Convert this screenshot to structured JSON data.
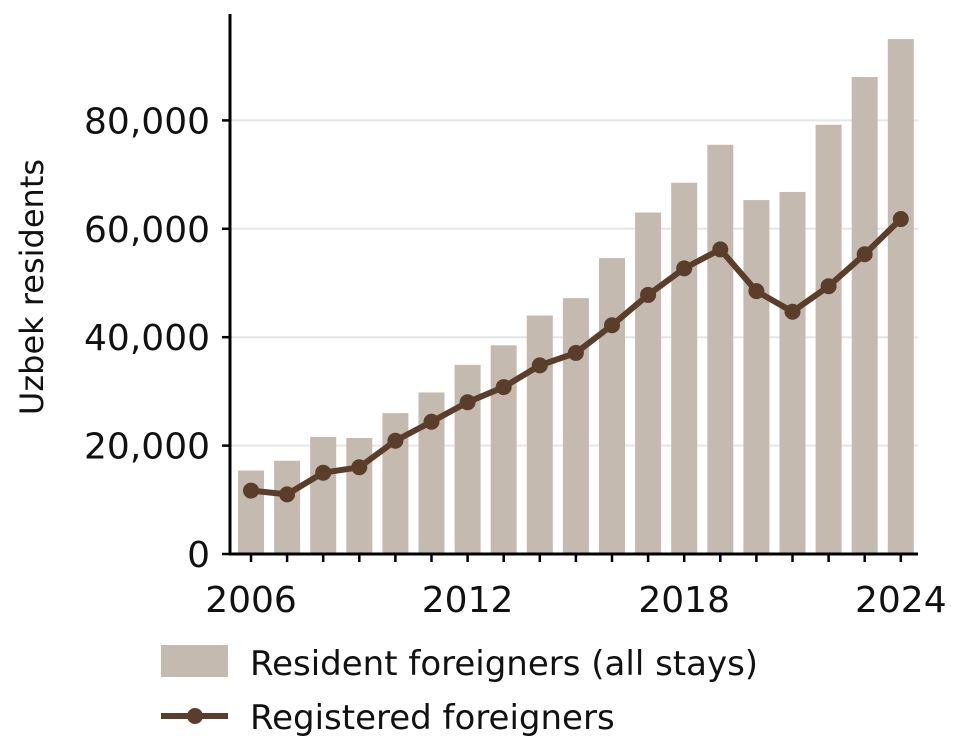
{
  "chart_data": {
    "type": "bar",
    "title": "",
    "xlabel": "",
    "ylabel": "Uzbek residents",
    "x": [
      2006,
      2007,
      2008,
      2009,
      2010,
      2011,
      2012,
      2013,
      2014,
      2015,
      2016,
      2017,
      2018,
      2019,
      2020,
      2021,
      2022,
      2023,
      2024
    ],
    "xticks": [
      2006,
      2012,
      2018,
      2024
    ],
    "xtick_labels": [
      "2006",
      "2012",
      "2018",
      "2024"
    ],
    "ylim": [
      0,
      100000
    ],
    "yticks": [
      0,
      20000,
      40000,
      60000,
      80000
    ],
    "ytick_labels": [
      "0",
      "20,000",
      "40,000",
      "60,000",
      "80,000"
    ],
    "grid": "horizontal",
    "legend_position": "bottom",
    "series": [
      {
        "name": "Resident foreigners (all stays)",
        "kind": "bar",
        "color": "#c4bab0",
        "values": [
          15400,
          17200,
          21600,
          21400,
          26000,
          29800,
          34900,
          38500,
          44000,
          47200,
          54600,
          63000,
          68500,
          75500,
          65300,
          66800,
          79200,
          88000,
          95000
        ]
      },
      {
        "name": "Registered foreigners",
        "kind": "line",
        "color": "#5a3e2b",
        "values": [
          11700,
          11000,
          15000,
          16000,
          20900,
          24400,
          28000,
          30800,
          34800,
          37100,
          42200,
          47800,
          52700,
          56200,
          48500,
          44700,
          49400,
          55300,
          61800
        ]
      }
    ]
  }
}
